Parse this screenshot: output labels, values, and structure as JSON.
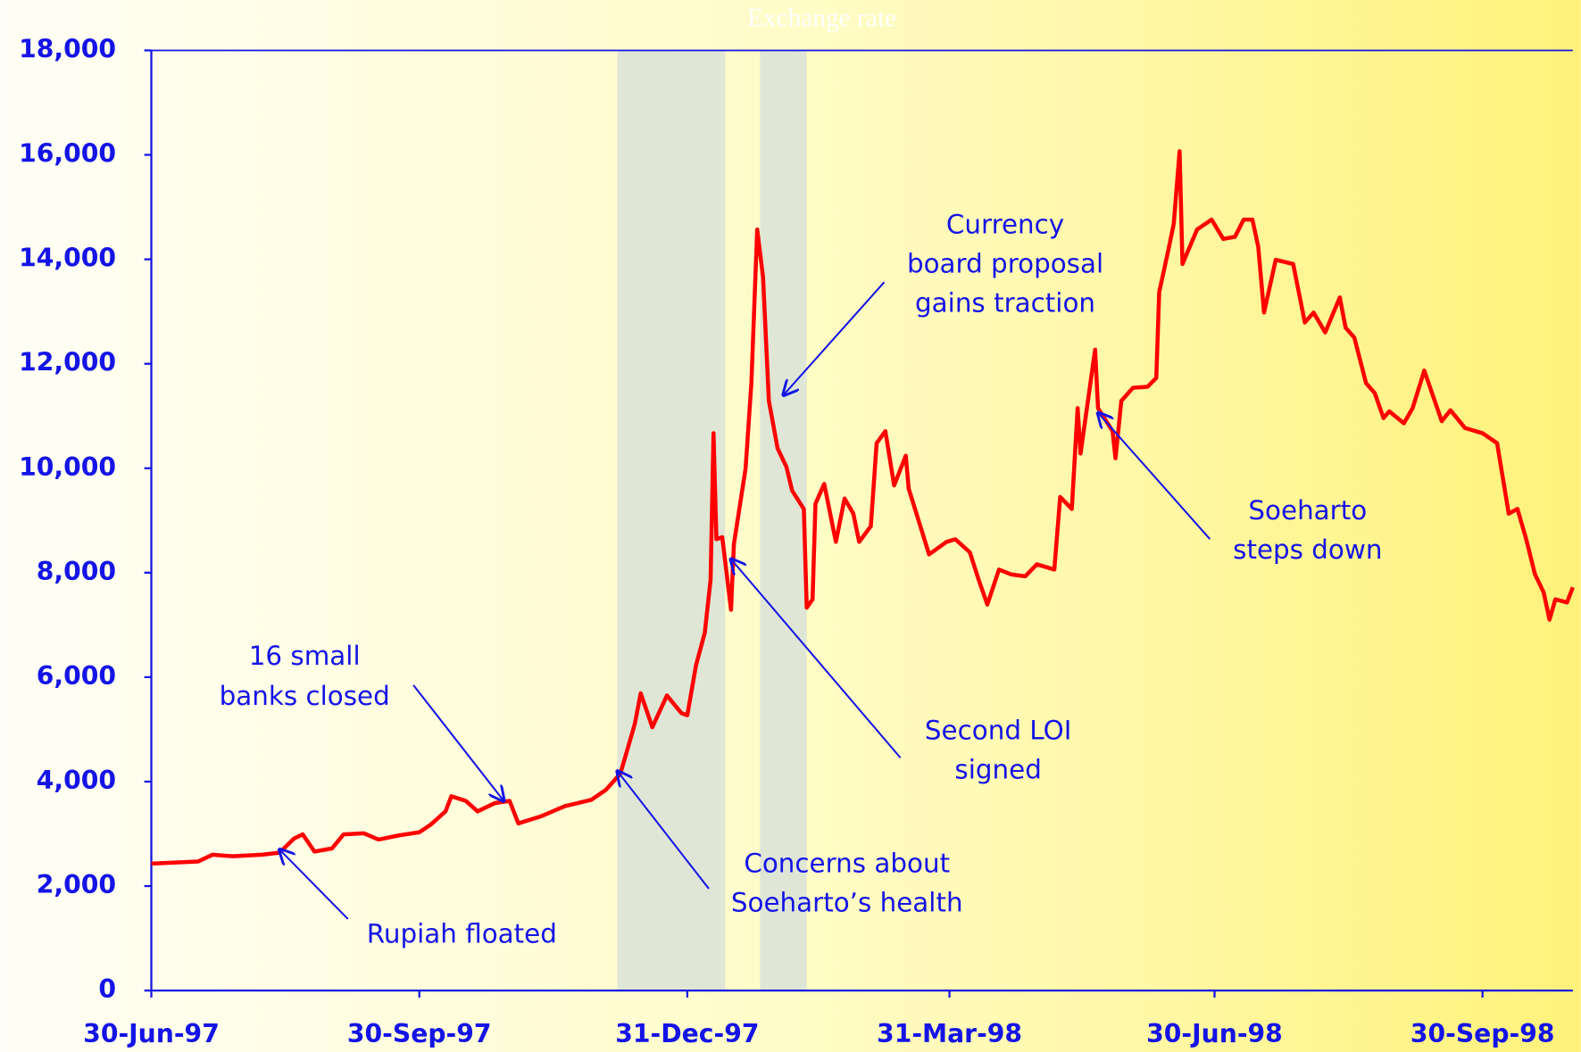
{
  "chart_data": {
    "type": "line",
    "title": "Exchange rate",
    "x": [
      "1997-06-30",
      "1997-07-16",
      "1997-07-21",
      "1997-07-28",
      "1997-08-07",
      "1997-08-13",
      "1997-08-18",
      "1997-08-21",
      "1997-08-25",
      "1997-08-31",
      "1997-09-04",
      "1997-09-11",
      "1997-09-16",
      "1997-09-23",
      "1997-09-30",
      "1997-10-04",
      "1997-10-09",
      "1997-10-11",
      "1997-10-16",
      "1997-10-20",
      "1997-10-26",
      "1997-10-31",
      "1997-11-03",
      "1997-11-11",
      "1997-11-19",
      "1997-11-28",
      "1997-12-03",
      "1997-12-08",
      "1997-12-10",
      "1997-12-13",
      "1997-12-15",
      "1997-12-19",
      "1997-12-24",
      "1997-12-29",
      "1997-12-31",
      "1998-01-03",
      "1998-01-06",
      "1998-01-08",
      "1998-01-09",
      "1998-01-10",
      "1998-01-12",
      "1998-01-15",
      "1998-01-16",
      "1998-01-20",
      "1998-01-22",
      "1998-01-24",
      "1998-01-26",
      "1998-01-28",
      "1998-01-31",
      "1998-02-03",
      "1998-02-05",
      "1998-02-09",
      "1998-02-10",
      "1998-02-12",
      "1998-02-13",
      "1998-02-16",
      "1998-02-20",
      "1998-02-23",
      "1998-02-26",
      "1998-02-28",
      "1998-03-04",
      "1998-03-06",
      "1998-03-09",
      "1998-03-12",
      "1998-03-16",
      "1998-03-17",
      "1998-03-24",
      "1998-03-30",
      "1998-04-02",
      "1998-04-07",
      "1998-04-10",
      "1998-04-13",
      "1998-04-17",
      "1998-04-21",
      "1998-04-26",
      "1998-04-30",
      "1998-05-06",
      "1998-05-08",
      "1998-05-12",
      "1998-05-14",
      "1998-05-15",
      "1998-05-20",
      "1998-05-21",
      "1998-05-26",
      "1998-05-27",
      "1998-05-29",
      "1998-06-02",
      "1998-06-07",
      "1998-06-10",
      "1998-06-11",
      "1998-06-14",
      "1998-06-16",
      "1998-06-18",
      "1998-06-19",
      "1998-06-24",
      "1998-06-29",
      "1998-07-03",
      "1998-07-07",
      "1998-07-10",
      "1998-07-13",
      "1998-07-15",
      "1998-07-17",
      "1998-07-21",
      "1998-07-27",
      "1998-07-31",
      "1998-08-03",
      "1998-08-07",
      "1998-08-12",
      "1998-08-14",
      "1998-08-17",
      "1998-08-21",
      "1998-08-24",
      "1998-08-27",
      "1998-08-29",
      "1998-09-03",
      "1998-09-06",
      "1998-09-10",
      "1998-09-16",
      "1998-09-19",
      "1998-09-24",
      "1998-09-30",
      "1998-10-05",
      "1998-10-09",
      "1998-10-12",
      "1998-10-15",
      "1998-10-18",
      "1998-10-21",
      "1998-10-23",
      "1998-10-25",
      "1998-10-29",
      "1998-10-31"
    ],
    "series": [
      {
        "color": "#ff0000",
        "values": [
          2430,
          2470,
          2600,
          2570,
          2600,
          2640,
          2910,
          2990,
          2660,
          2720,
          2990,
          3010,
          2890,
          2970,
          3030,
          3180,
          3430,
          3720,
          3630,
          3430,
          3590,
          3630,
          3200,
          3340,
          3530,
          3650,
          3840,
          4150,
          4530,
          5110,
          5690,
          5040,
          5650,
          5310,
          5270,
          6230,
          6850,
          7870,
          10670,
          8640,
          8680,
          7290,
          8550,
          9990,
          11630,
          14570,
          13660,
          11290,
          10380,
          10030,
          9570,
          9220,
          7330,
          7490,
          9320,
          9700,
          8590,
          9420,
          9130,
          8590,
          8890,
          10480,
          10710,
          9670,
          10240,
          9610,
          8350,
          8590,
          8640,
          8390,
          7870,
          7390,
          8060,
          7970,
          7930,
          8160,
          8060,
          9450,
          9220,
          11150,
          10280,
          12270,
          11150,
          10710,
          10190,
          11290,
          11540,
          11560,
          11730,
          13370,
          14140,
          14680,
          16070,
          13910,
          14570,
          14760,
          14390,
          14430,
          14760,
          14760,
          14240,
          12980,
          13990,
          13910,
          12790,
          12980,
          12600,
          13270,
          12690,
          12500,
          11630,
          11440,
          10960,
          11090,
          10860,
          11150,
          11870,
          10900,
          11110,
          10770,
          10670,
          10480,
          9130,
          9220,
          8640,
          7970,
          7620,
          7100,
          7490,
          7430,
          7720
        ]
      }
    ],
    "xlim": [
      "1997-06-30",
      "1998-10-31"
    ],
    "xticks": [
      {
        "value": "1997-06-30",
        "label": "30-Jun-97"
      },
      {
        "value": "1997-09-30",
        "label": "30-Sep-97"
      },
      {
        "value": "1997-12-31",
        "label": "31-Dec-97"
      },
      {
        "value": "1998-03-31",
        "label": "31-Mar-98"
      },
      {
        "value": "1998-06-30",
        "label": "30-Jun-98"
      },
      {
        "value": "1998-09-30",
        "label": "30-Sep-98"
      }
    ],
    "ylim": [
      0,
      18000
    ],
    "yticks": [
      0,
      {
        "value": 2000,
        "label": "2,000"
      },
      {
        "value": 4000,
        "label": "4,000"
      },
      {
        "value": 6000,
        "label": "6,000"
      },
      {
        "value": 8000,
        "label": "8,000"
      },
      {
        "value": 10000,
        "label": "10,000"
      },
      {
        "value": 12000,
        "label": "12,000"
      },
      {
        "value": 14000,
        "label": "14,000"
      },
      {
        "value": 16000,
        "label": "16,000"
      },
      {
        "value": 18000,
        "label": "18,000"
      }
    ],
    "shaded": [
      {
        "start": "1997-12-07",
        "end": "1998-01-13",
        "color": "#dfe6d6"
      },
      {
        "start": "1998-01-25",
        "end": "1998-02-10",
        "color": "#dfe6d6"
      }
    ],
    "annotations": [
      {
        "lines": [
          "Rupiah floated"
        ],
        "x": "1997-08-13",
        "y": 2700
      },
      {
        "lines": [
          "16 small",
          "banks closed"
        ],
        "x": "1997-10-29",
        "y": 3630
      },
      {
        "lines": [
          "Concerns about",
          "Soeharto’s health"
        ],
        "x": "1997-12-07",
        "y": 4200
      },
      {
        "lines": [
          "Second LOI",
          "signed"
        ],
        "x": "1998-01-15",
        "y": 8260
      },
      {
        "lines": [
          "Currency",
          "board proposal",
          "gains traction"
        ],
        "x": "1998-02-02",
        "y": 11400
      },
      {
        "lines": [
          "Soeharto",
          "steps down"
        ],
        "x": "1998-05-21",
        "y": 11060
      }
    ]
  }
}
